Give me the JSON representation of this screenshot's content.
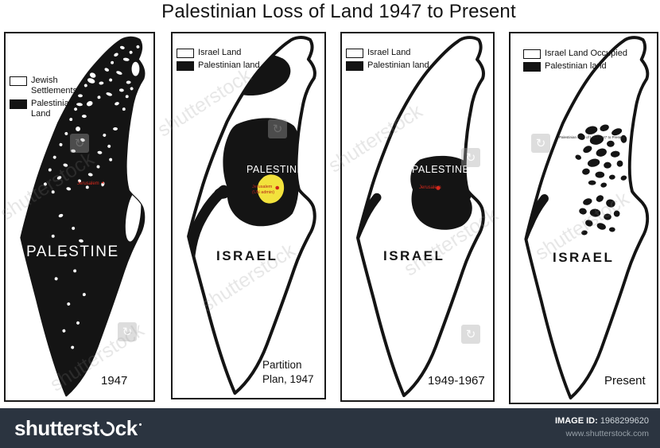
{
  "title": "Palestinian Loss of Land 1947 to Present",
  "panels": [
    {
      "legend": [
        {
          "swatch": "white",
          "label": "Jewish Settlements"
        },
        {
          "swatch": "black",
          "label": "Palestinian Land"
        }
      ],
      "region_label": "PALESTINE",
      "city_label": "Jerusalem",
      "caption": "1947"
    },
    {
      "legend": [
        {
          "swatch": "white",
          "label": "Israel Land"
        },
        {
          "swatch": "black",
          "label": "Palestinian land"
        }
      ],
      "region_label": "PALESTINE",
      "country_label": "ISRAEL",
      "city_label": "Jerusalem",
      "city_note": "(UN admin)",
      "caption_line1": "Partition",
      "caption_line2": "Plan, 1947"
    },
    {
      "legend": [
        {
          "swatch": "white",
          "label": "Israel Land"
        },
        {
          "swatch": "black",
          "label": "Palestinian land"
        }
      ],
      "region_label": "PALESTINE",
      "country_label": "ISRAEL",
      "city_label": "Jerusalem",
      "caption": "1949-1967"
    },
    {
      "legend": [
        {
          "swatch": "white",
          "label": "Israel Land Occupied"
        },
        {
          "swatch": "black",
          "label": "Palestinian land"
        }
      ],
      "country_label": "ISRAEL",
      "tiny_text": "Palestinian Loss of Land 1947 to Present",
      "caption": "Present"
    }
  ],
  "watermark": {
    "text": "shutterstock"
  },
  "footer": {
    "brand_left": "shutterst",
    "brand_right": "ck",
    "image_id_label": "IMAGE ID:",
    "image_id": "1968299620",
    "website": "www.shutterstock.com"
  },
  "colors": {
    "palestinian_land": "#141414",
    "israel_land": "#ffffff",
    "jerusalem_un_zone": "#f2e23c",
    "city_label_red": "#d9291c",
    "footer_bg": "#2b3440"
  }
}
